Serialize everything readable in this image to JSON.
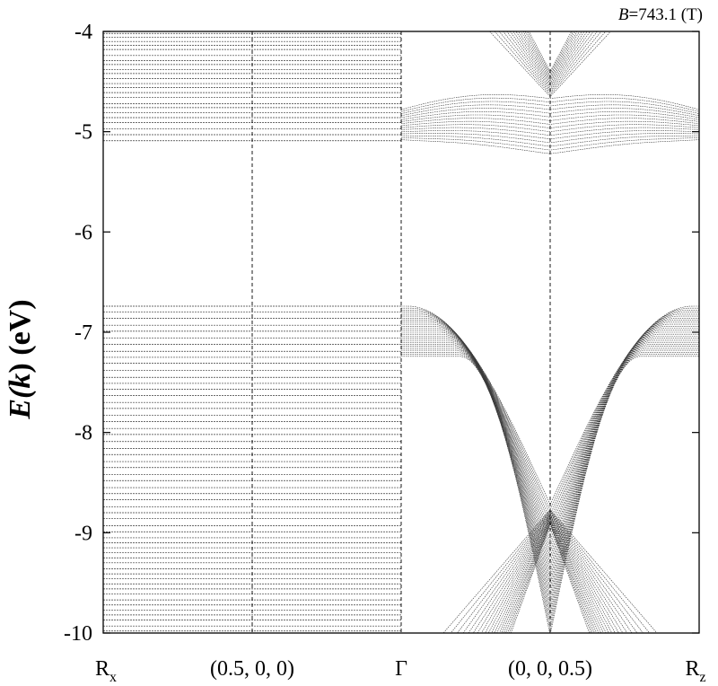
{
  "chart_data": {
    "type": "line",
    "description_label": "band structure",
    "annotation": {
      "symbol": "B",
      "value": "=743.1 (T)"
    },
    "ylabel": {
      "main": "E(",
      "k": "k",
      "close": ")",
      "unit": " (eV)"
    },
    "ylim": [
      -10,
      -4
    ],
    "y_ticks": [
      -4,
      -5,
      -6,
      -7,
      -8,
      -9,
      -10
    ],
    "y_tick_labels": [
      "-4",
      "-5",
      "-6",
      "-7",
      "-8",
      "-9",
      "-10"
    ],
    "x_ticks": [
      {
        "pos": 0.0,
        "label": "R",
        "sub": "x"
      },
      {
        "pos": 0.5,
        "label": "(0.5, 0, 0)",
        "sub": ""
      },
      {
        "pos": 1.0,
        "label": "Γ",
        "sub": ""
      },
      {
        "pos": 1.5,
        "label": "(0, 0, 0.5)",
        "sub": ""
      },
      {
        "pos": 2.0,
        "label": "R",
        "sub": "z"
      }
    ],
    "xlim": [
      0,
      2
    ],
    "dashed_vlines": [
      0.5,
      1.0,
      1.5
    ],
    "flat_levels_Rx_to_Gamma": [
      -4.02,
      -4.06,
      -4.1,
      -4.14,
      -4.18,
      -4.24,
      -4.29,
      -4.33,
      -4.38,
      -4.42,
      -4.47,
      -4.52,
      -4.56,
      -4.61,
      -4.66,
      -4.72,
      -4.76,
      -4.81,
      -4.86,
      -4.91,
      -4.97,
      -5.03,
      -5.09,
      -6.74,
      -6.8,
      -6.86,
      -6.93,
      -6.99,
      -7.06,
      -7.12,
      -7.19,
      -7.25,
      -7.31,
      -7.38,
      -7.45,
      -7.51,
      -7.57,
      -7.63,
      -7.7,
      -7.76,
      -7.83,
      -7.89,
      -7.96,
      -8.02,
      -8.09,
      -8.16,
      -8.22,
      -8.29,
      -8.35,
      -8.42,
      -8.48,
      -8.55,
      -8.61,
      -8.67,
      -8.74,
      -8.8,
      -8.86,
      -8.93,
      -8.99,
      -9.05,
      -9.1,
      -9.15,
      -9.2,
      -9.25,
      -9.3,
      -9.36,
      -9.41,
      -9.46,
      -9.51,
      -9.56,
      -9.61,
      -9.67,
      -9.72,
      -9.77,
      -9.82,
      -9.87,
      -9.93,
      -9.98
    ],
    "gamma_to_Rz": {
      "upper_band_bottom_at_mid": -5.22,
      "upper_band_edge_at_Gamma_and_Rz": -5.08,
      "upper_cone_minimum": -4.65,
      "lower_band_top_at_Gamma_and_Rz": -6.74,
      "dirac_point_at_mid": -8.72
    }
  }
}
